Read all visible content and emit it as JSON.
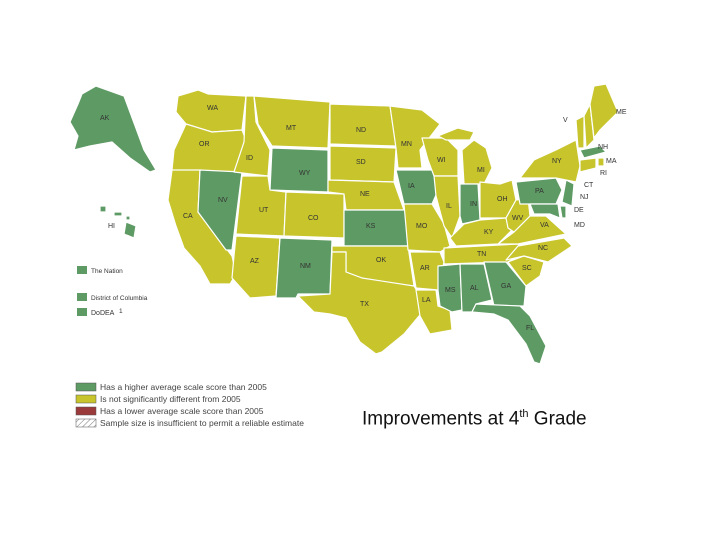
{
  "colors": {
    "higher": "#5e9a64",
    "not_different": "#c7c42c",
    "lower": "#9b3a3a",
    "insufficient": "#ffffff"
  },
  "states": {
    "AK": "higher",
    "WA": "not_different",
    "OR": "not_different",
    "CA": "not_different",
    "NV": "higher",
    "ID": "not_different",
    "MT": "not_different",
    "WY": "higher",
    "UT": "not_different",
    "AZ": "not_different",
    "CO": "not_different",
    "NM": "higher",
    "ND": "not_different",
    "SD": "not_different",
    "NE": "not_different",
    "KS": "higher",
    "OK": "not_different",
    "TX": "not_different",
    "MN": "not_different",
    "IA": "higher",
    "MO": "not_different",
    "AR": "not_different",
    "LA": "not_different",
    "WI": "not_different",
    "IL": "not_different",
    "MS": "higher",
    "MI": "not_different",
    "IN": "higher",
    "KY": "not_different",
    "TN": "not_different",
    "AL": "higher",
    "OH": "not_different",
    "WV": "not_different",
    "VA": "not_different",
    "NC": "not_different",
    "SC": "not_different",
    "GA": "higher",
    "FL": "higher",
    "PA": "higher",
    "NY": "not_different",
    "VT": "not_different",
    "NH": "not_different",
    "ME": "not_different",
    "MA": "higher",
    "CT": "not_different",
    "RI": "not_different",
    "NJ": "higher",
    "DE": "higher",
    "MD": "higher",
    "HI": "higher"
  },
  "sidebar": [
    {
      "label": "The Nation",
      "status": "higher"
    },
    {
      "label": "District of Columbia",
      "status": "higher"
    },
    {
      "label": "DoDEA",
      "note": "1",
      "status": "higher"
    }
  ],
  "legend": [
    {
      "status": "higher",
      "label": "Has a higher average scale score than 2005"
    },
    {
      "status": "not_different",
      "label": "Is not significantly different from 2005"
    },
    {
      "status": "lower",
      "label": "Has a lower average scale score than 2005"
    },
    {
      "status": "insufficient",
      "label": "Sample size is insufficient to permit a reliable estimate"
    }
  ],
  "caption": {
    "prefix": "Improvements at 4",
    "sup": "th",
    "suffix": " Grade"
  }
}
